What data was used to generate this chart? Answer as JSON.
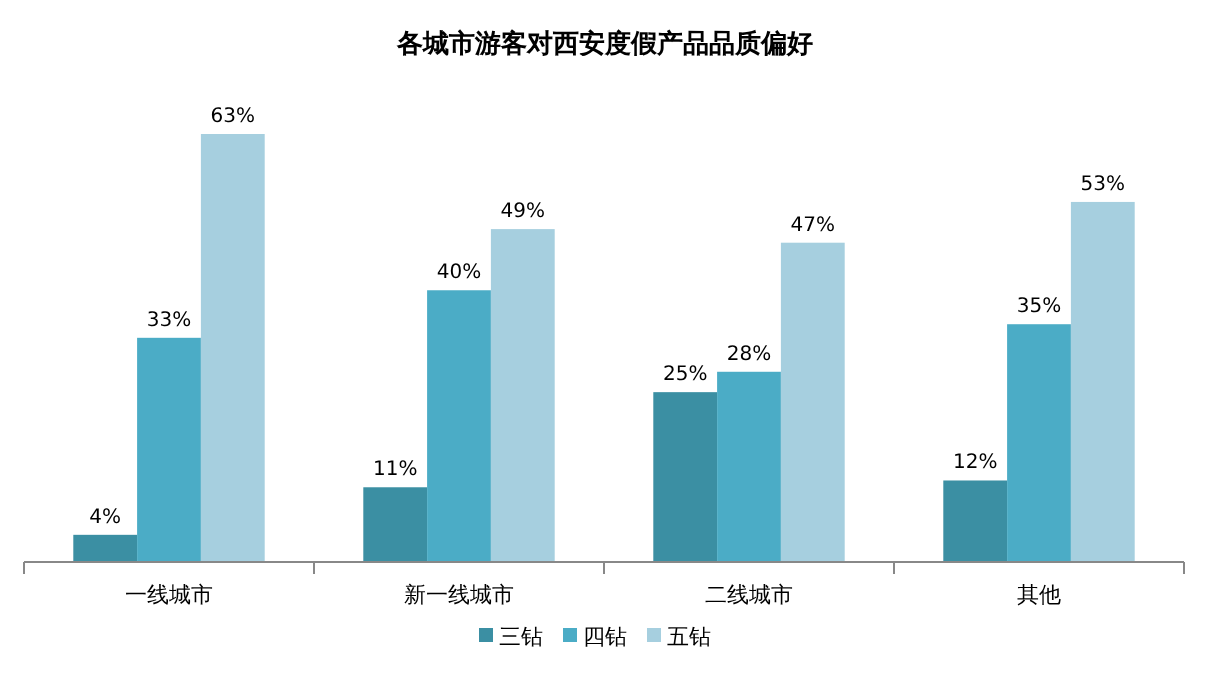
{
  "chart_data": {
    "type": "bar",
    "title": "各城市游客对西安度假产品品质偏好",
    "categories": [
      "一线城市",
      "新一线城市",
      "二线城市",
      "其他"
    ],
    "series": [
      {
        "name": "三钻",
        "color": "#3b8fa3",
        "values": [
          4,
          11,
          25,
          12
        ],
        "value_labels": [
          "4%",
          "11%",
          "25%",
          "12%"
        ]
      },
      {
        "name": "四钻",
        "color": "#4bacc6",
        "values": [
          33,
          40,
          28,
          35
        ],
        "value_labels": [
          "33%",
          "40%",
          "28%",
          "35%"
        ]
      },
      {
        "name": "五钻",
        "color": "#a6cfdf",
        "values": [
          63,
          49,
          47,
          53
        ],
        "value_labels": [
          "63%",
          "49%",
          "47%",
          "53%"
        ]
      }
    ],
    "legend": "bottom"
  }
}
